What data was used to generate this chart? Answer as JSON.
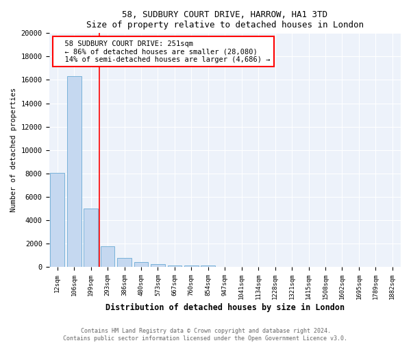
{
  "title": "58, SUDBURY COURT DRIVE, HARROW, HA1 3TD",
  "subtitle": "Size of property relative to detached houses in London",
  "xlabel": "Distribution of detached houses by size in London",
  "ylabel": "Number of detached properties",
  "categories": [
    "12sqm",
    "106sqm",
    "199sqm",
    "293sqm",
    "386sqm",
    "480sqm",
    "573sqm",
    "667sqm",
    "760sqm",
    "854sqm",
    "947sqm",
    "1041sqm",
    "1134sqm",
    "1228sqm",
    "1321sqm",
    "1415sqm",
    "1508sqm",
    "1602sqm",
    "1695sqm",
    "1789sqm",
    "1882sqm"
  ],
  "values": [
    8050,
    16300,
    5000,
    1750,
    780,
    420,
    230,
    140,
    110,
    120,
    0,
    0,
    0,
    0,
    0,
    0,
    0,
    0,
    0,
    0,
    0
  ],
  "bar_color": "#c5d8f0",
  "bar_edge_color": "#6aaad4",
  "red_line_x": 2.5,
  "annotation_line1": "58 SUDBURY COURT DRIVE: 251sqm",
  "annotation_line2": "← 86% of detached houses are smaller (28,080)",
  "annotation_line3": "14% of semi-detached houses are larger (4,686) →",
  "ylim": [
    0,
    20000
  ],
  "yticks": [
    0,
    2000,
    4000,
    6000,
    8000,
    10000,
    12000,
    14000,
    16000,
    18000,
    20000
  ],
  "background_color": "#edf2fa",
  "footer_line1": "Contains HM Land Registry data © Crown copyright and database right 2024.",
  "footer_line2": "Contains public sector information licensed under the Open Government Licence v3.0."
}
